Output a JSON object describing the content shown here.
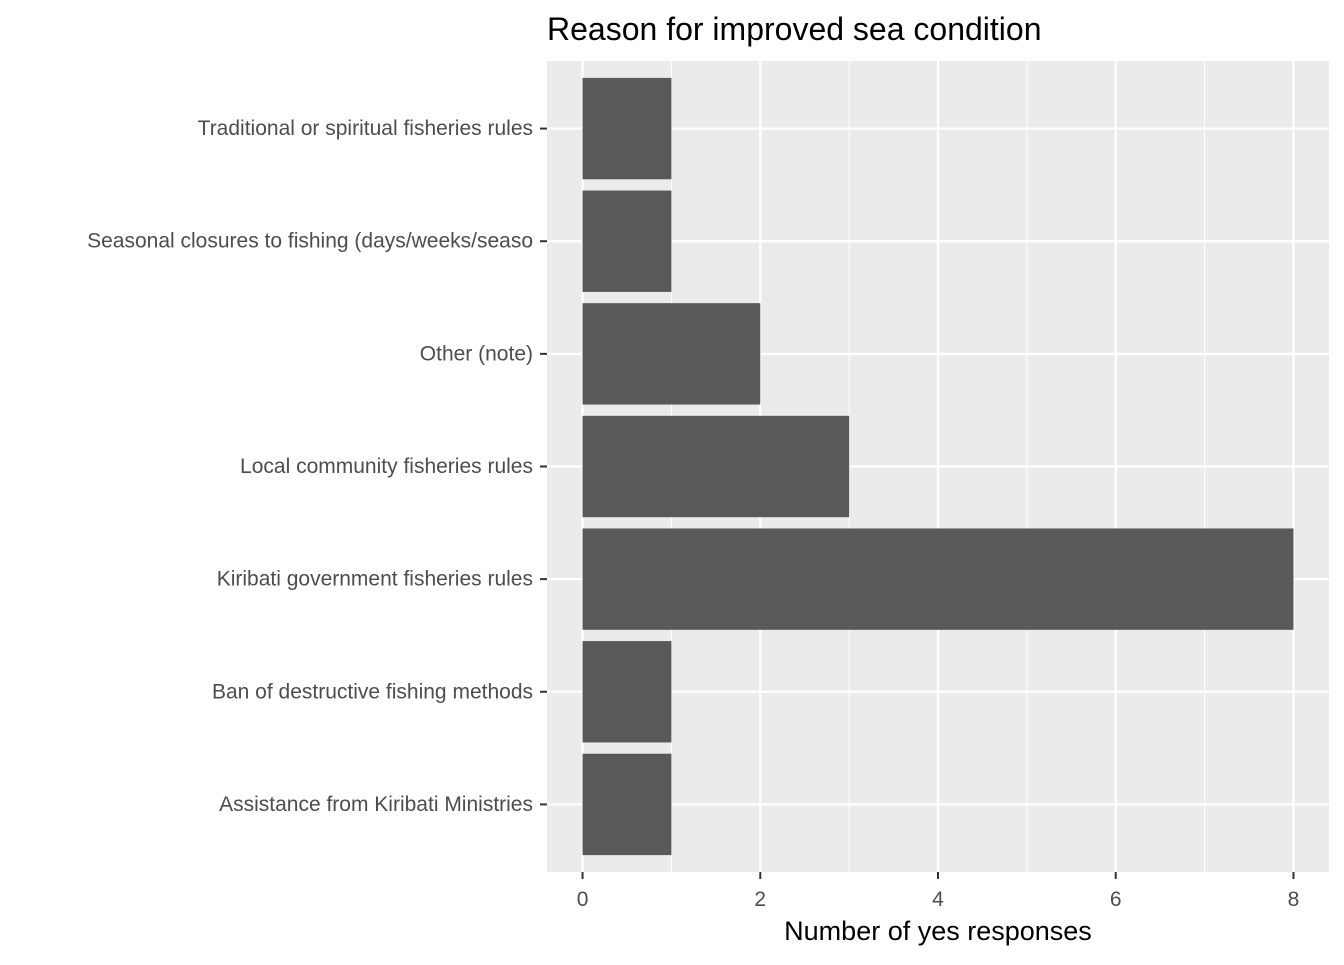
{
  "chart_data": {
    "type": "bar",
    "orientation": "horizontal",
    "title": "Reason for improved sea condition",
    "xlabel": "Number of yes responses",
    "ylabel": "",
    "categories": [
      "Traditional or spiritual fisheries rules",
      "Seasonal closures to fishing (days/weeks/seaso",
      "Other (note)",
      "Local community fisheries rules",
      "Kiribati government fisheries rules",
      "Ban of destructive fishing methods",
      "Assistance from Kiribati Ministries"
    ],
    "values": [
      1,
      1,
      2,
      3,
      8,
      1,
      1
    ],
    "xlim": [
      -0.4,
      8.4
    ],
    "xticks": [
      0,
      2,
      4,
      6,
      8
    ],
    "xtick_labels": [
      "0",
      "2",
      "4",
      "6",
      "8"
    ],
    "grid": true,
    "legend": "none"
  },
  "colors": {
    "panel_background": "#EBEBEB",
    "grid_line": "#FFFFFF",
    "bar_fill": "#595959",
    "tick_color": "#333333",
    "tick_label_color": "#4D4D4D",
    "title_color": "#000000"
  }
}
